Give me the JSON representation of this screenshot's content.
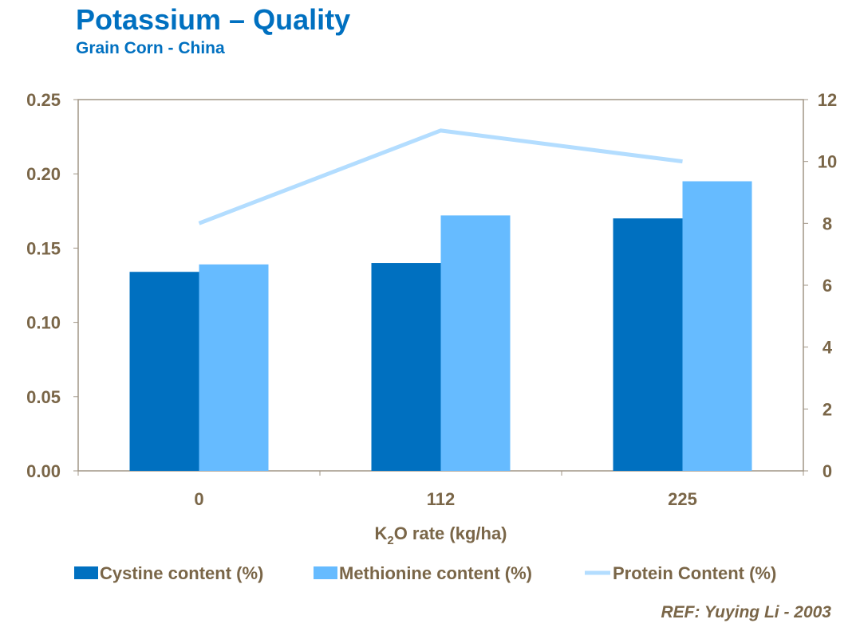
{
  "chart_data": {
    "type": "bar",
    "title": "Potassium – Quality",
    "subtitle": "Grain Corn - China",
    "xlabel_parts": [
      "K",
      "2",
      "O rate (kg/ha)"
    ],
    "categories": [
      "0",
      "112",
      "225"
    ],
    "y_left": {
      "ylim": [
        0,
        0.25
      ],
      "ticks": [
        "0.00",
        "0.05",
        "0.10",
        "0.15",
        "0.20",
        "0.25"
      ]
    },
    "y_right": {
      "ylim": [
        0,
        12
      ],
      "ticks": [
        "0",
        "2",
        "4",
        "6",
        "8",
        "10",
        "12"
      ]
    },
    "series": [
      {
        "name": "Cystine content (%)",
        "type": "bar",
        "axis": "left",
        "color": "#0070C0",
        "values": [
          0.134,
          0.14,
          0.17
        ]
      },
      {
        "name": "Methionine content (%)",
        "type": "bar",
        "axis": "left",
        "color": "#66BBFF",
        "values": [
          0.139,
          0.172,
          0.195
        ]
      },
      {
        "name": "Protein Content (%)",
        "type": "line",
        "axis": "right",
        "color": "#B3DDFF",
        "values": [
          8,
          11,
          10
        ]
      }
    ],
    "grid": false,
    "legend": "bottom"
  },
  "reference": "REF: Yuying Li - 2003"
}
